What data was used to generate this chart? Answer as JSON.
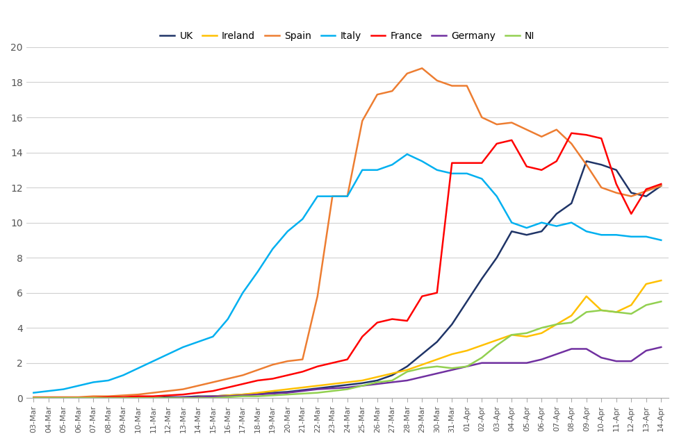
{
  "dates": [
    "03-Mar",
    "04-Mar",
    "05-Mar",
    "06-Mar",
    "07-Mar",
    "08-Mar",
    "09-Mar",
    "10-Mar",
    "11-Mar",
    "12-Mar",
    "13-Mar",
    "14-Mar",
    "15-Mar",
    "16-Mar",
    "17-Mar",
    "18-Mar",
    "19-Mar",
    "20-Mar",
    "21-Mar",
    "22-Mar",
    "23-Mar",
    "24-Mar",
    "25-Mar",
    "26-Mar",
    "27-Mar",
    "28-Mar",
    "29-Mar",
    "30-Mar",
    "31-Mar",
    "01-Apr",
    "02-Apr",
    "03-Apr",
    "04-Apr",
    "05-Apr",
    "06-Apr",
    "07-Apr",
    "08-Apr",
    "09-Apr",
    "10-Apr",
    "11-Apr",
    "12-Apr",
    "13-Apr",
    "14-Apr"
  ],
  "series": {
    "UK": {
      "color": "#1f3467",
      "values": [
        0.0,
        0.0,
        0.0,
        0.0,
        0.0,
        0.0,
        0.0,
        0.0,
        0.0,
        0.05,
        0.05,
        0.1,
        0.1,
        0.15,
        0.2,
        0.25,
        0.3,
        0.35,
        0.45,
        0.55,
        0.65,
        0.75,
        0.85,
        1.0,
        1.3,
        1.8,
        2.5,
        3.2,
        4.2,
        5.5,
        6.8,
        8.0,
        9.5,
        9.3,
        9.5,
        10.5,
        11.1,
        13.5,
        13.3,
        13.0,
        11.7,
        11.5,
        12.1
      ]
    },
    "Ireland": {
      "color": "#ffc000",
      "values": [
        0.0,
        0.0,
        0.0,
        0.0,
        0.0,
        0.0,
        0.0,
        0.0,
        0.0,
        0.0,
        0.0,
        0.05,
        0.1,
        0.15,
        0.2,
        0.3,
        0.4,
        0.5,
        0.6,
        0.7,
        0.8,
        0.9,
        1.0,
        1.2,
        1.4,
        1.6,
        1.9,
        2.2,
        2.5,
        2.7,
        3.0,
        3.3,
        3.6,
        3.5,
        3.7,
        4.2,
        4.7,
        5.8,
        5.0,
        4.9,
        5.3,
        6.5,
        6.7
      ]
    },
    "Spain": {
      "color": "#ed7d31",
      "values": [
        0.05,
        0.05,
        0.05,
        0.05,
        0.1,
        0.1,
        0.15,
        0.2,
        0.3,
        0.4,
        0.5,
        0.7,
        0.9,
        1.1,
        1.3,
        1.6,
        1.9,
        2.1,
        2.2,
        5.8,
        11.5,
        11.5,
        15.8,
        17.3,
        17.5,
        18.5,
        18.8,
        18.1,
        17.8,
        17.8,
        16.0,
        15.6,
        15.7,
        15.3,
        14.9,
        15.3,
        14.5,
        13.3,
        12.0,
        11.7,
        11.5,
        11.8,
        12.1
      ]
    },
    "Italy": {
      "color": "#00b0f0",
      "values": [
        0.3,
        0.4,
        0.5,
        0.7,
        0.9,
        1.0,
        1.3,
        1.7,
        2.1,
        2.5,
        2.9,
        3.2,
        3.5,
        4.5,
        6.0,
        7.2,
        8.5,
        9.5,
        10.2,
        11.5,
        11.5,
        11.5,
        13.0,
        13.0,
        13.3,
        13.9,
        13.5,
        13.0,
        12.8,
        12.8,
        12.5,
        11.5,
        10.0,
        9.7,
        10.0,
        9.8,
        10.0,
        9.5,
        9.3,
        9.3,
        9.2,
        9.2,
        9.0
      ]
    },
    "France": {
      "color": "#ff0000",
      "values": [
        0.0,
        0.0,
        0.0,
        0.0,
        0.0,
        0.05,
        0.05,
        0.1,
        0.1,
        0.15,
        0.2,
        0.3,
        0.4,
        0.6,
        0.8,
        1.0,
        1.1,
        1.3,
        1.5,
        1.8,
        2.0,
        2.2,
        3.5,
        4.3,
        4.5,
        4.4,
        5.8,
        6.0,
        13.4,
        13.4,
        13.4,
        14.5,
        14.7,
        13.2,
        13.0,
        13.5,
        15.1,
        15.0,
        14.8,
        12.2,
        10.5,
        11.9,
        12.2
      ]
    },
    "Germany": {
      "color": "#7030a0",
      "values": [
        0.0,
        0.0,
        0.0,
        0.0,
        0.0,
        0.0,
        0.0,
        0.0,
        0.0,
        0.0,
        0.05,
        0.05,
        0.1,
        0.1,
        0.15,
        0.2,
        0.25,
        0.3,
        0.4,
        0.5,
        0.55,
        0.6,
        0.7,
        0.8,
        0.9,
        1.0,
        1.2,
        1.4,
        1.6,
        1.8,
        2.0,
        2.0,
        2.0,
        2.0,
        2.2,
        2.5,
        2.8,
        2.8,
        2.3,
        2.1,
        2.1,
        2.7,
        2.9
      ]
    },
    "NI": {
      "color": "#92d050",
      "values": [
        0.0,
        0.0,
        0.0,
        0.0,
        0.0,
        0.0,
        0.0,
        0.0,
        0.0,
        0.0,
        0.0,
        0.0,
        0.0,
        0.05,
        0.1,
        0.1,
        0.15,
        0.2,
        0.25,
        0.3,
        0.4,
        0.5,
        0.7,
        0.9,
        1.0,
        1.5,
        1.7,
        1.8,
        1.7,
        1.8,
        2.3,
        3.0,
        3.6,
        3.7,
        4.0,
        4.2,
        4.3,
        4.9,
        5.0,
        4.9,
        4.8,
        5.3,
        5.5
      ]
    }
  },
  "ylim": [
    0,
    20
  ],
  "yticks": [
    0,
    2,
    4,
    6,
    8,
    10,
    12,
    14,
    16,
    18,
    20
  ],
  "background_color": "#ffffff",
  "grid_color": "#d0d0d0",
  "legend_order": [
    "UK",
    "Ireland",
    "Spain",
    "Italy",
    "France",
    "Germany",
    "NI"
  ]
}
